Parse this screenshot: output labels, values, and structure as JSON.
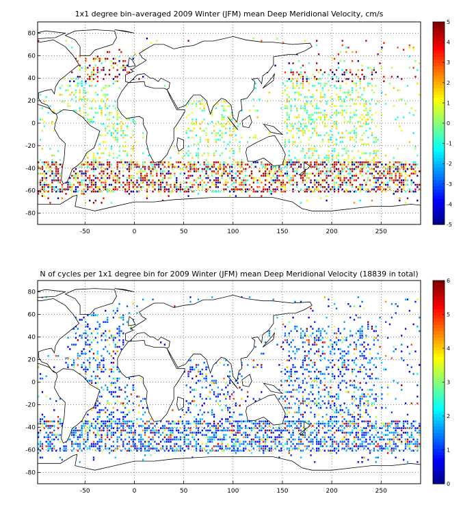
{
  "chart_data": [
    {
      "type": "heatmap",
      "title": "1x1 degree bin–averaged 2009 Winter (JFM) mean Deep Meridional Velocity, cm/s",
      "xlabel": "",
      "ylabel": "",
      "x_ticks": [
        -50,
        0,
        50,
        100,
        150,
        200,
        250
      ],
      "y_ticks": [
        80,
        60,
        40,
        20,
        0,
        -20,
        -40,
        -60,
        -80
      ],
      "xlim": [
        -98,
        290
      ],
      "ylim": [
        -90,
        90
      ],
      "grid": true,
      "colorbar": {
        "ticks": [
          5,
          4,
          3,
          2,
          1,
          0,
          -1,
          -2,
          -3,
          -4,
          -5
        ],
        "range": [
          -5,
          5
        ]
      },
      "colormap": "jet",
      "seed": 7
    },
    {
      "type": "heatmap",
      "title": "N of cycles per 1x1 degree bin for 2009 Winter (JFM) mean Deep Meridional Velocity (18839 in total)",
      "xlabel": "",
      "ylabel": "",
      "x_ticks": [
        -50,
        0,
        50,
        100,
        150,
        200,
        250
      ],
      "y_ticks": [
        80,
        60,
        40,
        20,
        0,
        -20,
        -40,
        -60,
        -80
      ],
      "xlim": [
        -98,
        290
      ],
      "ylim": [
        -90,
        90
      ],
      "grid": true,
      "colorbar": {
        "ticks": [
          6,
          5,
          4,
          3,
          2,
          1,
          0
        ],
        "range": [
          0,
          6
        ]
      },
      "colormap": "jet",
      "seed": 13
    }
  ]
}
